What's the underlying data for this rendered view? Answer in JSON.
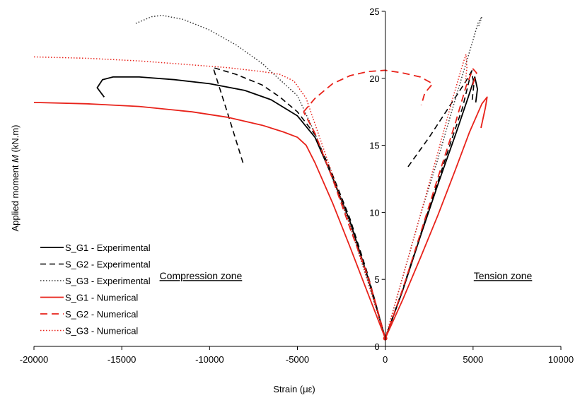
{
  "chart_data": {
    "type": "line",
    "xlabel": "Strain (με)",
    "ylabel": "Applied moment M (kN.m)",
    "xlim": [
      -20000,
      10000
    ],
    "ylim": [
      0,
      25
    ],
    "xticks": [
      -20000,
      -15000,
      -10000,
      -5000,
      0,
      5000,
      10000
    ],
    "yticks": [
      0,
      5,
      10,
      15,
      20,
      25
    ],
    "xtick_labels": [
      "-20000",
      "-15000",
      "-10000",
      "-5000",
      "0",
      "5000",
      "10000"
    ],
    "ytick_labels": [
      "0",
      "5",
      "10",
      "15",
      "20",
      "25"
    ],
    "grid": false,
    "legend_position": "bottom-left",
    "annotations": [
      {
        "text": "Compression zone",
        "x": -10500,
        "y": 5
      },
      {
        "text": "Tension zone",
        "x": 6700,
        "y": 5
      }
    ],
    "series": [
      {
        "name": "S_G1 - Experimental",
        "color": "#000000",
        "dash": "solid",
        "width": 1.8,
        "segments": [
          [
            [
              -16000,
              18.6
            ],
            [
              -16400,
              19.3
            ],
            [
              -16100,
              19.9
            ],
            [
              -15500,
              20.1
            ],
            [
              -14000,
              20.1
            ],
            [
              -12000,
              19.9
            ],
            [
              -10000,
              19.6
            ],
            [
              -8000,
              19.1
            ],
            [
              -6500,
              18.4
            ],
            [
              -5000,
              17.2
            ],
            [
              -4000,
              15.6
            ],
            [
              -3000,
              12.6
            ],
            [
              -2000,
              9.3
            ],
            [
              -1000,
              5.2
            ],
            [
              0,
              0.6
            ]
          ],
          [
            [
              0,
              0.6
            ],
            [
              1000,
              4.2
            ],
            [
              2000,
              8.2
            ],
            [
              3000,
              12.1
            ],
            [
              4000,
              15.8
            ],
            [
              4700,
              18.5
            ],
            [
              5100,
              20.1
            ],
            [
              5250,
              19.2
            ],
            [
              5150,
              18.2
            ]
          ]
        ]
      },
      {
        "name": "S_G2 - Experimental",
        "color": "#000000",
        "dash": "8,5",
        "width": 1.6,
        "segments": [
          [
            [
              -8100,
              13.7
            ],
            [
              -9000,
              17.5
            ],
            [
              -9800,
              20.8
            ],
            [
              -8500,
              20.3
            ],
            [
              -7000,
              19.5
            ],
            [
              -6000,
              18.6
            ],
            [
              -5000,
              17.5
            ],
            [
              -4000,
              15.8
            ],
            [
              -3000,
              12.8
            ],
            [
              -2000,
              9.5
            ],
            [
              -1000,
              5.4
            ],
            [
              0,
              0.6
            ]
          ],
          [
            [
              0,
              0.6
            ],
            [
              1000,
              4.3
            ],
            [
              2000,
              8.3
            ],
            [
              3000,
              12.3
            ],
            [
              3800,
              15.5
            ],
            [
              4400,
              17.8
            ],
            [
              4900,
              20.5
            ],
            [
              5050,
              19.6
            ],
            [
              4950,
              18.4
            ]
          ],
          [
            [
              1300,
              13.4
            ],
            [
              2500,
              15.6
            ],
            [
              3600,
              17.8
            ],
            [
              4600,
              19.8
            ],
            [
              4950,
              20.6
            ]
          ]
        ]
      },
      {
        "name": "S_G3 - Experimental",
        "color": "#333333",
        "dash": "1.5,2.5",
        "width": 1.5,
        "segments": [
          [
            [
              -14200,
              24.1
            ],
            [
              -13300,
              24.6
            ],
            [
              -12700,
              24.7
            ],
            [
              -11500,
              24.4
            ],
            [
              -10000,
              23.6
            ],
            [
              -8500,
              22.5
            ],
            [
              -7000,
              21.1
            ],
            [
              -6000,
              19.9
            ],
            [
              -5000,
              18.7
            ],
            [
              -4000,
              15.9
            ],
            [
              -3000,
              12.5
            ],
            [
              -2000,
              9.0
            ],
            [
              -1000,
              4.9
            ],
            [
              0,
              0.6
            ]
          ],
          [
            [
              0,
              0.6
            ],
            [
              1000,
              5.2
            ],
            [
              2000,
              9.8
            ],
            [
              3000,
              14.0
            ],
            [
              4000,
              18.5
            ],
            [
              4800,
              22.0
            ],
            [
              5300,
              24.2
            ],
            [
              5500,
              24.6
            ],
            [
              5300,
              23.8
            ]
          ]
        ]
      },
      {
        "name": "S_G1 - Numerical",
        "color": "#e8221a",
        "dash": "solid",
        "width": 1.8,
        "segments": [
          [
            [
              -20000,
              18.2
            ],
            [
              -17000,
              18.1
            ],
            [
              -14000,
              17.9
            ],
            [
              -11000,
              17.5
            ],
            [
              -9000,
              17.1
            ],
            [
              -7000,
              16.5
            ],
            [
              -5800,
              16.0
            ],
            [
              -5000,
              15.6
            ],
            [
              -4500,
              15.0
            ],
            [
              -4000,
              13.7
            ],
            [
              -3000,
              10.7
            ],
            [
              -2000,
              7.4
            ],
            [
              -1000,
              4.0
            ],
            [
              0,
              0.6
            ]
          ],
          [
            [
              0,
              0.6
            ],
            [
              1000,
              3.5
            ],
            [
              2000,
              6.6
            ],
            [
              3000,
              9.8
            ],
            [
              4000,
              13.2
            ],
            [
              4800,
              16.0
            ],
            [
              5500,
              18.1
            ],
            [
              5800,
              18.6
            ],
            [
              5700,
              17.8
            ],
            [
              5450,
              16.3
            ]
          ]
        ]
      },
      {
        "name": "S_G2 - Numerical",
        "color": "#e8221a",
        "dash": "10,6",
        "width": 1.8,
        "segments": [
          [
            [
              -4650,
              17.5
            ],
            [
              -4000,
              18.5
            ],
            [
              -3000,
              19.6
            ],
            [
              -2000,
              20.2
            ],
            [
              -1000,
              20.5
            ],
            [
              0,
              20.6
            ],
            [
              1000,
              20.4
            ],
            [
              2000,
              20.1
            ],
            [
              2700,
              19.6
            ],
            [
              2250,
              18.9
            ],
            [
              2050,
              18.0
            ]
          ],
          [
            [
              0,
              0.6
            ],
            [
              -500,
              3.0
            ],
            [
              -1000,
              5.3
            ],
            [
              -2000,
              8.8
            ],
            [
              -3000,
              12.5
            ],
            [
              -4000,
              15.9
            ],
            [
              -4650,
              17.5
            ]
          ],
          [
            [
              0,
              0.6
            ],
            [
              1000,
              4.3
            ],
            [
              2000,
              8.4
            ],
            [
              3000,
              12.6
            ],
            [
              4000,
              16.7
            ],
            [
              4600,
              19.4
            ],
            [
              5000,
              20.7
            ],
            [
              5200,
              20.4
            ],
            [
              4900,
              19.2
            ]
          ]
        ]
      },
      {
        "name": "S_G3 - Numerical",
        "color": "#e8221a",
        "dash": "1.5,2.5",
        "width": 1.5,
        "segments": [
          [
            [
              -20000,
              21.6
            ],
            [
              -17000,
              21.5
            ],
            [
              -14000,
              21.3
            ],
            [
              -11000,
              21.0
            ],
            [
              -9000,
              20.8
            ],
            [
              -7000,
              20.5
            ],
            [
              -6000,
              20.3
            ],
            [
              -5200,
              19.8
            ],
            [
              -4500,
              18.5
            ],
            [
              -4000,
              16.6
            ],
            [
              -3000,
              12.8
            ],
            [
              -2000,
              9.0
            ],
            [
              -1000,
              4.9
            ],
            [
              0,
              0.6
            ]
          ],
          [
            [
              0,
              0.6
            ],
            [
              1000,
              5.2
            ],
            [
              2000,
              9.8
            ],
            [
              3000,
              14.5
            ],
            [
              3800,
              18.3
            ],
            [
              4400,
              21.0
            ],
            [
              4600,
              21.8
            ],
            [
              4650,
              20.8
            ],
            [
              4550,
              19.6
            ]
          ]
        ]
      }
    ]
  }
}
